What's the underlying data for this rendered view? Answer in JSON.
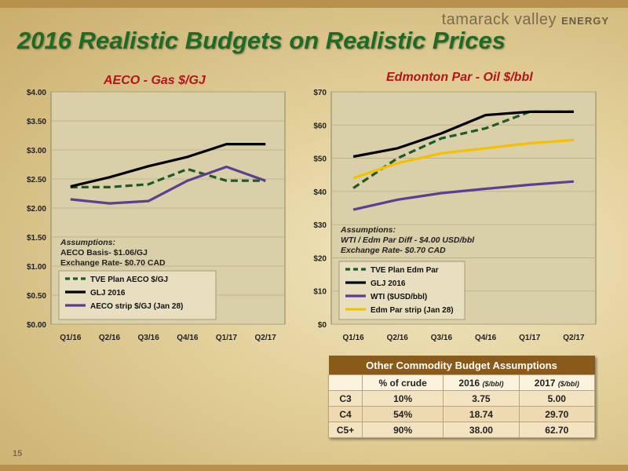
{
  "brand": {
    "name": "tamarack valley",
    "suffix": "ENERGY"
  },
  "title": "2016 Realistic Budgets on Realistic Prices",
  "page_number": "15",
  "chart_data": [
    {
      "type": "line",
      "title": "AECO - Gas $/GJ",
      "categories": [
        "Q1/16",
        "Q2/16",
        "Q3/16",
        "Q4/16",
        "Q1/17",
        "Q2/17"
      ],
      "ylim": [
        0,
        4
      ],
      "yticks": [
        "$0.00",
        "$0.50",
        "$1.00",
        "$1.50",
        "$2.00",
        "$2.50",
        "$3.00",
        "$3.50",
        "$4.00"
      ],
      "series": [
        {
          "name": "TVE Plan AECO $/GJ",
          "values": [
            2.36,
            2.36,
            2.41,
            2.67,
            2.47,
            2.47
          ],
          "color": "#1d5a2a",
          "dash": true
        },
        {
          "name": "GLJ 2016",
          "values": [
            2.37,
            2.53,
            2.72,
            2.88,
            3.1,
            3.1
          ],
          "color": "#000000",
          "dash": false
        },
        {
          "name": "AECO strip $/GJ (Jan 28)",
          "values": [
            2.15,
            2.08,
            2.12,
            2.47,
            2.71,
            2.47
          ],
          "color": "#5b3f93",
          "dash": false
        }
      ],
      "assumptions": [
        "Assumptions:",
        "AECO Basis- $1.06/GJ",
        "Exchange Rate- $0.70 CAD"
      ]
    },
    {
      "type": "line",
      "title": "Edmonton Par - Oil $/bbl",
      "categories": [
        "Q1/16",
        "Q2/16",
        "Q3/16",
        "Q4/16",
        "Q1/17",
        "Q2/17"
      ],
      "ylim": [
        0,
        70
      ],
      "yticks": [
        "$0",
        "$10",
        "$20",
        "$30",
        "$40",
        "$50",
        "$60",
        "$70"
      ],
      "series": [
        {
          "name": "TVE Plan Edm Par",
          "values": [
            41,
            50,
            56,
            59,
            64,
            64
          ],
          "color": "#1d5a2a",
          "dash": true
        },
        {
          "name": "GLJ 2016",
          "values": [
            50.5,
            53,
            57.5,
            63,
            64,
            64
          ],
          "color": "#000000",
          "dash": false
        },
        {
          "name": "WTI ($USD/bbl)",
          "values": [
            34.5,
            37.5,
            39.5,
            40.8,
            42,
            43
          ],
          "color": "#5b3f93",
          "dash": false
        },
        {
          "name": "Edm Par strip (Jan 28)",
          "values": [
            44,
            48.5,
            51.5,
            53,
            54.5,
            55.5
          ],
          "color": "#f5c000",
          "dash": false
        }
      ],
      "assumptions": [
        "Assumptions:",
        "WTI / Edm Par Diff - $4.00 USD/bbl",
        "Exchange Rate- $0.70 CAD"
      ]
    }
  ],
  "table": {
    "title": "Other Commodity Budget Assumptions",
    "headers": [
      "",
      "% of crude",
      "2016",
      "2017"
    ],
    "unit": "($/bbl)",
    "rows": [
      [
        "C3",
        "10%",
        "3.75",
        "5.00"
      ],
      [
        "C4",
        "54%",
        "18.74",
        "29.70"
      ],
      [
        "C5+",
        "90%",
        "38.00",
        "62.70"
      ]
    ]
  }
}
